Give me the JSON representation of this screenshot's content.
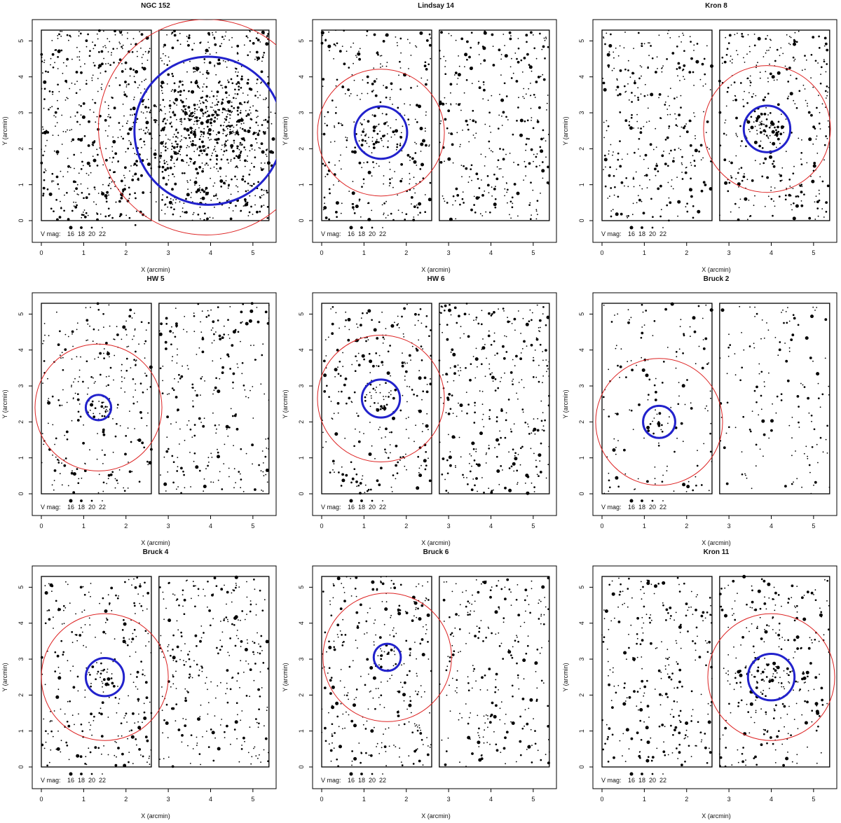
{
  "figure": {
    "panels": [
      {
        "title": "NGC 152"
      },
      {
        "title": "Lindsay 14"
      },
      {
        "title": "Kron 8"
      },
      {
        "title": "HW 5"
      },
      {
        "title": "HW 6"
      },
      {
        "title": "Bruck 2"
      },
      {
        "title": "Bruck 4"
      },
      {
        "title": "Bruck 6"
      },
      {
        "title": "Kron 11"
      }
    ]
  },
  "chart_data": [
    {
      "type": "scatter",
      "title": "NGC 152",
      "xlabel": "X (arcmin)",
      "ylabel": "Y (arcmin)",
      "xlim": [
        0,
        5.4
      ],
      "ylim": [
        0,
        5.3
      ],
      "x_ticks": [
        "0",
        "1",
        "2",
        "3",
        "4",
        "5"
      ],
      "y_ticks": [
        "0",
        "1",
        "2",
        "3",
        "4",
        "5"
      ],
      "legend": {
        "label": "V mag:",
        "entries": [
          "16",
          "18",
          "20",
          "22"
        ],
        "position": "bottom-left"
      },
      "chips": [
        {
          "x": [
            0,
            2.6
          ],
          "y": [
            0,
            5.3
          ]
        },
        {
          "x": [
            2.78,
            5.38
          ],
          "y": [
            0,
            5.3
          ]
        }
      ],
      "circles": [
        {
          "name": "cluster radius",
          "color": "#2222cc",
          "cx": 3.95,
          "cy": 2.5,
          "r": 1.75
        },
        {
          "name": "field boundary",
          "color": "#dd2222",
          "cx": 3.9,
          "cy": 2.6,
          "r": 2.55
        }
      ],
      "density": {
        "background": 1000,
        "concentration": 450
      }
    },
    {
      "type": "scatter",
      "title": "Lindsay 14",
      "xlabel": "X (arcmin)",
      "ylabel": "Y (arcmin)",
      "xlim": [
        0,
        5.4
      ],
      "ylim": [
        0,
        5.3
      ],
      "x_ticks": [
        "0",
        "1",
        "2",
        "3",
        "4",
        "5"
      ],
      "y_ticks": [
        "0",
        "1",
        "2",
        "3",
        "4",
        "5"
      ],
      "legend": {
        "label": "V mag:",
        "entries": [
          "16",
          "18",
          "20",
          "22"
        ],
        "position": "bottom-left"
      },
      "chips": [
        {
          "x": [
            0,
            2.6
          ],
          "y": [
            0,
            5.3
          ]
        },
        {
          "x": [
            2.78,
            5.38
          ],
          "y": [
            0,
            5.3
          ]
        }
      ],
      "circles": [
        {
          "name": "cluster radius",
          "color": "#2222cc",
          "cx": 1.4,
          "cy": 2.45,
          "r": 0.62
        },
        {
          "name": "field boundary",
          "color": "#dd2222",
          "cx": 1.4,
          "cy": 2.45,
          "r": 1.5
        }
      ],
      "density": {
        "background": 620,
        "concentration": 45
      }
    },
    {
      "type": "scatter",
      "title": "Kron 8",
      "xlabel": "X (arcmin)",
      "ylabel": "Y (arcmin)",
      "xlim": [
        0,
        5.4
      ],
      "ylim": [
        0,
        5.3
      ],
      "x_ticks": [
        "0",
        "1",
        "2",
        "3",
        "4",
        "5"
      ],
      "y_ticks": [
        "0",
        "1",
        "2",
        "3",
        "4",
        "5"
      ],
      "legend": {
        "label": "V mag:",
        "entries": [
          "16",
          "18",
          "20",
          "22"
        ],
        "position": "bottom-left"
      },
      "chips": [
        {
          "x": [
            0,
            2.6
          ],
          "y": [
            0,
            5.3
          ]
        },
        {
          "x": [
            2.78,
            5.38
          ],
          "y": [
            0,
            5.3
          ]
        }
      ],
      "circles": [
        {
          "name": "cluster radius",
          "color": "#2222cc",
          "cx": 3.9,
          "cy": 2.55,
          "r": 0.55
        },
        {
          "name": "field boundary",
          "color": "#dd2222",
          "cx": 3.9,
          "cy": 2.55,
          "r": 1.5
        }
      ],
      "density": {
        "background": 650,
        "concentration": 50
      }
    },
    {
      "type": "scatter",
      "title": "HW 5",
      "xlabel": "X (arcmin)",
      "ylabel": "Y (arcmin)",
      "xlim": [
        0,
        5.4
      ],
      "ylim": [
        0,
        5.3
      ],
      "x_ticks": [
        "0",
        "1",
        "2",
        "3",
        "4",
        "5"
      ],
      "y_ticks": [
        "0",
        "1",
        "2",
        "3",
        "4",
        "5"
      ],
      "legend": {
        "label": "V mag:",
        "entries": [
          "16",
          "18",
          "20",
          "22"
        ],
        "position": "bottom-left"
      },
      "chips": [
        {
          "x": [
            0,
            2.6
          ],
          "y": [
            0,
            5.3
          ]
        },
        {
          "x": [
            2.78,
            5.38
          ],
          "y": [
            0,
            5.3
          ]
        }
      ],
      "circles": [
        {
          "name": "cluster radius",
          "color": "#2222cc",
          "cx": 1.35,
          "cy": 2.4,
          "r": 0.3
        },
        {
          "name": "field boundary",
          "color": "#dd2222",
          "cx": 1.35,
          "cy": 2.4,
          "r": 1.5
        }
      ],
      "density": {
        "background": 520,
        "concentration": 18
      }
    },
    {
      "type": "scatter",
      "title": "HW 6",
      "xlabel": "X (arcmin)",
      "ylabel": "Y (arcmin)",
      "xlim": [
        0,
        5.4
      ],
      "ylim": [
        0,
        5.3
      ],
      "x_ticks": [
        "0",
        "1",
        "2",
        "3",
        "4",
        "5"
      ],
      "y_ticks": [
        "0",
        "1",
        "2",
        "3",
        "4",
        "5"
      ],
      "legend": {
        "label": "V mag:",
        "entries": [
          "16",
          "18",
          "20",
          "22"
        ],
        "position": "bottom-left"
      },
      "chips": [
        {
          "x": [
            0,
            2.6
          ],
          "y": [
            0,
            5.3
          ]
        },
        {
          "x": [
            2.78,
            5.38
          ],
          "y": [
            0,
            5.3
          ]
        }
      ],
      "circles": [
        {
          "name": "cluster radius",
          "color": "#2222cc",
          "cx": 1.4,
          "cy": 2.65,
          "r": 0.45
        },
        {
          "name": "field boundary",
          "color": "#dd2222",
          "cx": 1.4,
          "cy": 2.65,
          "r": 1.5
        }
      ],
      "density": {
        "background": 600,
        "concentration": 25
      }
    },
    {
      "type": "scatter",
      "title": "Bruck 2",
      "xlabel": "X (arcmin)",
      "ylabel": "Y (arcmin)",
      "xlim": [
        0,
        5.4
      ],
      "ylim": [
        0,
        5.3
      ],
      "x_ticks": [
        "0",
        "1",
        "2",
        "3",
        "4",
        "5"
      ],
      "y_ticks": [
        "0",
        "1",
        "2",
        "3",
        "4",
        "5"
      ],
      "legend": {
        "label": "V mag:",
        "entries": [
          "16",
          "18",
          "20",
          "22"
        ],
        "position": "bottom-left"
      },
      "chips": [
        {
          "x": [
            0,
            2.6
          ],
          "y": [
            0,
            5.3
          ]
        },
        {
          "x": [
            2.78,
            5.38
          ],
          "y": [
            0,
            5.3
          ]
        }
      ],
      "circles": [
        {
          "name": "cluster radius",
          "color": "#2222cc",
          "cx": 1.35,
          "cy": 2.0,
          "r": 0.38
        },
        {
          "name": "field boundary",
          "color": "#dd2222",
          "cx": 1.35,
          "cy": 2.0,
          "r": 1.5
        }
      ],
      "density": {
        "background": 300,
        "concentration": 16
      }
    },
    {
      "type": "scatter",
      "title": "Bruck 4",
      "xlabel": "X (arcmin)",
      "ylabel": "Y (arcmin)",
      "xlim": [
        0,
        5.4
      ],
      "ylim": [
        0,
        5.3
      ],
      "x_ticks": [
        "0",
        "1",
        "2",
        "3",
        "4",
        "5"
      ],
      "y_ticks": [
        "0",
        "1",
        "2",
        "3",
        "4",
        "5"
      ],
      "legend": {
        "label": "V mag:",
        "entries": [
          "16",
          "18",
          "20",
          "22"
        ],
        "position": "bottom-left"
      },
      "chips": [
        {
          "x": [
            0,
            2.6
          ],
          "y": [
            0,
            5.3
          ]
        },
        {
          "x": [
            2.78,
            5.38
          ],
          "y": [
            0,
            5.3
          ]
        }
      ],
      "circles": [
        {
          "name": "cluster radius",
          "color": "#2222cc",
          "cx": 1.5,
          "cy": 2.5,
          "r": 0.45
        },
        {
          "name": "field boundary",
          "color": "#dd2222",
          "cx": 1.5,
          "cy": 2.5,
          "r": 1.5
        }
      ],
      "density": {
        "background": 560,
        "concentration": 22
      }
    },
    {
      "type": "scatter",
      "title": "Bruck 6",
      "xlabel": "X (arcmin)",
      "ylabel": "Y (arcmin)",
      "xlim": [
        0,
        5.4
      ],
      "ylim": [
        0,
        5.3
      ],
      "x_ticks": [
        "0",
        "1",
        "2",
        "3",
        "4",
        "5"
      ],
      "y_ticks": [
        "0",
        "1",
        "2",
        "3",
        "4",
        "5"
      ],
      "legend": {
        "label": "V mag:",
        "entries": [
          "16",
          "18",
          "20",
          "22"
        ],
        "position": "bottom-left"
      },
      "chips": [
        {
          "x": [
            0,
            2.6
          ],
          "y": [
            0,
            5.3
          ]
        },
        {
          "x": [
            2.78,
            5.38
          ],
          "y": [
            0,
            5.3
          ]
        }
      ],
      "circles": [
        {
          "name": "cluster radius",
          "color": "#2222cc",
          "cx": 1.55,
          "cy": 3.05,
          "r": 0.32
        },
        {
          "name": "field boundary",
          "color": "#dd2222",
          "cx": 1.55,
          "cy": 3.05,
          "r": 1.52
        }
      ],
      "density": {
        "background": 560,
        "concentration": 14
      }
    },
    {
      "type": "scatter",
      "title": "Kron 11",
      "xlabel": "X (arcmin)",
      "ylabel": "Y (arcmin)",
      "xlim": [
        0,
        5.4
      ],
      "ylim": [
        0,
        5.3
      ],
      "x_ticks": [
        "0",
        "1",
        "2",
        "3",
        "4",
        "5"
      ],
      "y_ticks": [
        "0",
        "1",
        "2",
        "3",
        "4",
        "5"
      ],
      "legend": {
        "label": "V mag:",
        "entries": [
          "16",
          "18",
          "20",
          "22"
        ],
        "position": "bottom-left"
      },
      "chips": [
        {
          "x": [
            0,
            2.6
          ],
          "y": [
            0,
            5.3
          ]
        },
        {
          "x": [
            2.78,
            5.38
          ],
          "y": [
            0,
            5.3
          ]
        }
      ],
      "circles": [
        {
          "name": "cluster radius",
          "color": "#2222cc",
          "cx": 4.0,
          "cy": 2.5,
          "r": 0.55
        },
        {
          "name": "field boundary",
          "color": "#dd2222",
          "cx": 4.0,
          "cy": 2.5,
          "r": 1.5
        }
      ],
      "density": {
        "background": 560,
        "concentration": 40
      }
    }
  ]
}
